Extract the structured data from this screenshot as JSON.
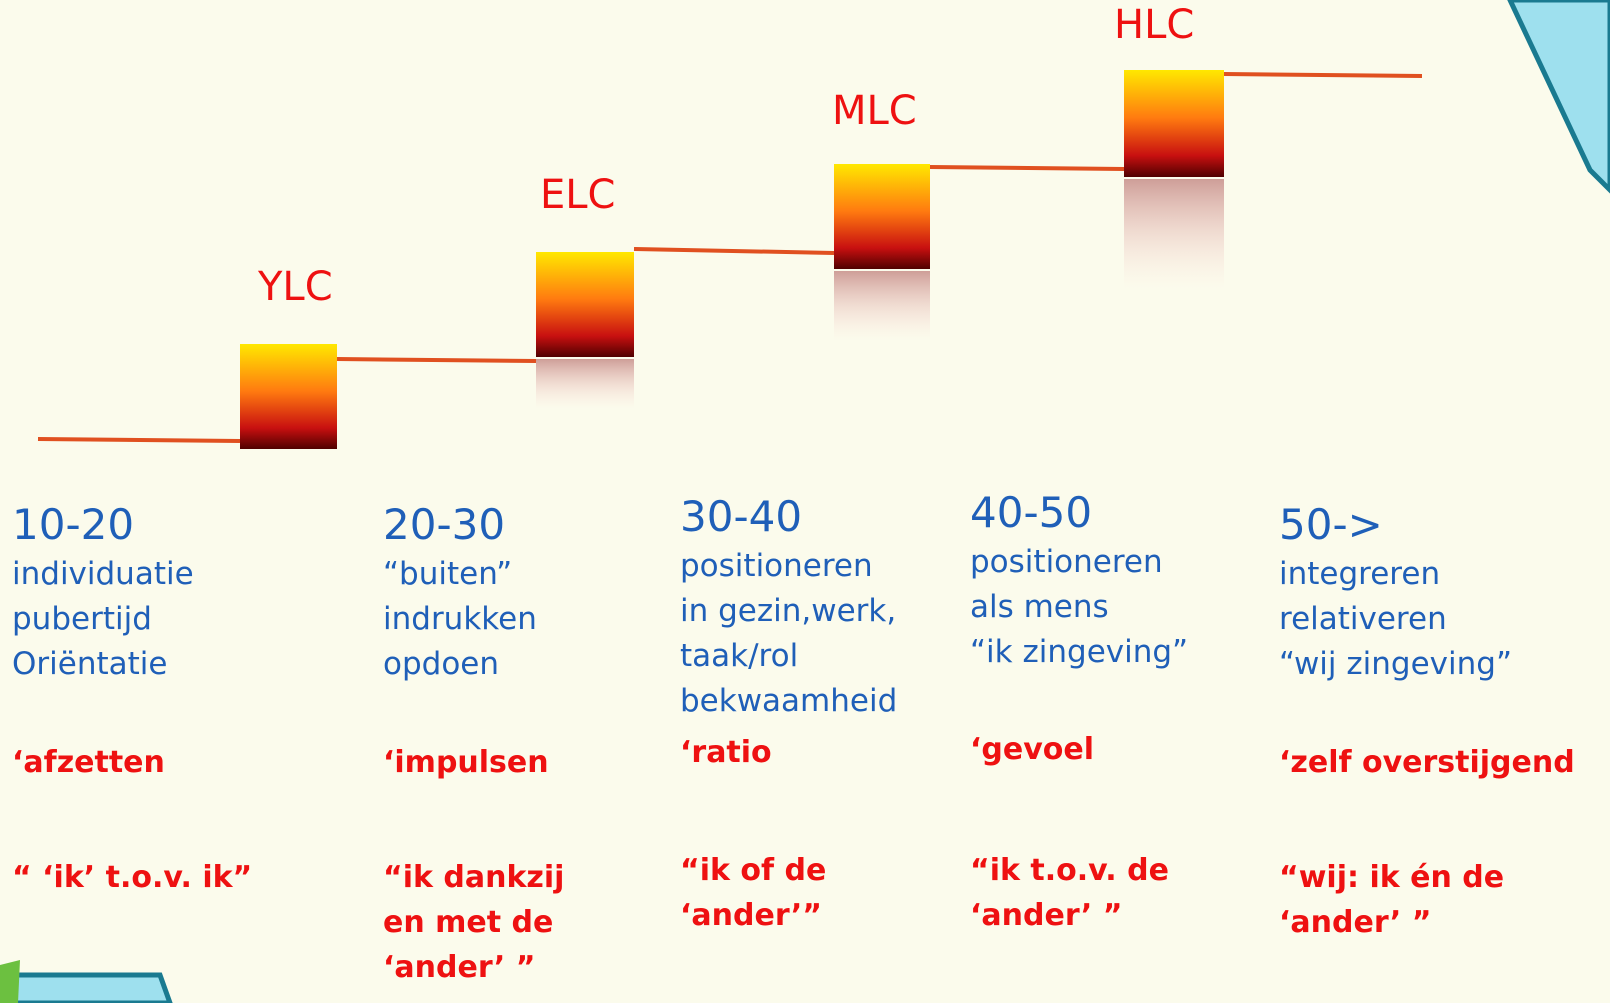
{
  "stages": [
    {
      "label": "YLC"
    },
    {
      "label": "ELC"
    },
    {
      "label": "MLC"
    },
    {
      "label": "HLC"
    }
  ],
  "columns": [
    {
      "age": "10-20",
      "lines": [
        "individuatie",
        "pubertijd",
        "Oriëntatie"
      ],
      "keyword": "‘afzetten",
      "quote": [
        "“ ‘ik’ t.o.v. ik”"
      ]
    },
    {
      "age": "20-30",
      "lines": [
        "“buiten”",
        "indrukken",
        "opdoen"
      ],
      "keyword": "‘impulsen",
      "quote": [
        "“ik dankzij",
        "en met de",
        "‘ander’ ”"
      ]
    },
    {
      "age": "30-40",
      "lines": [
        "positioneren",
        "in gezin,werk,",
        "taak/rol",
        "bekwaamheid"
      ],
      "keyword": "‘ratio",
      "quote": [
        "“ik of de",
        "‘ander’”"
      ]
    },
    {
      "age": "40-50",
      "lines": [
        "positioneren",
        "als mens",
        "“ik zingeving”"
      ],
      "keyword": "‘gevoel",
      "quote": [
        "“ik t.o.v. de",
        "‘ander’ ”"
      ]
    },
    {
      "age": "50->",
      "lines": [
        "integreren",
        "relativeren",
        "“wij zingeving”"
      ],
      "keyword": "‘zelf overstijgend",
      "quote": [
        "“wij: ik én de",
        "‘ander’ ”"
      ]
    }
  ]
}
